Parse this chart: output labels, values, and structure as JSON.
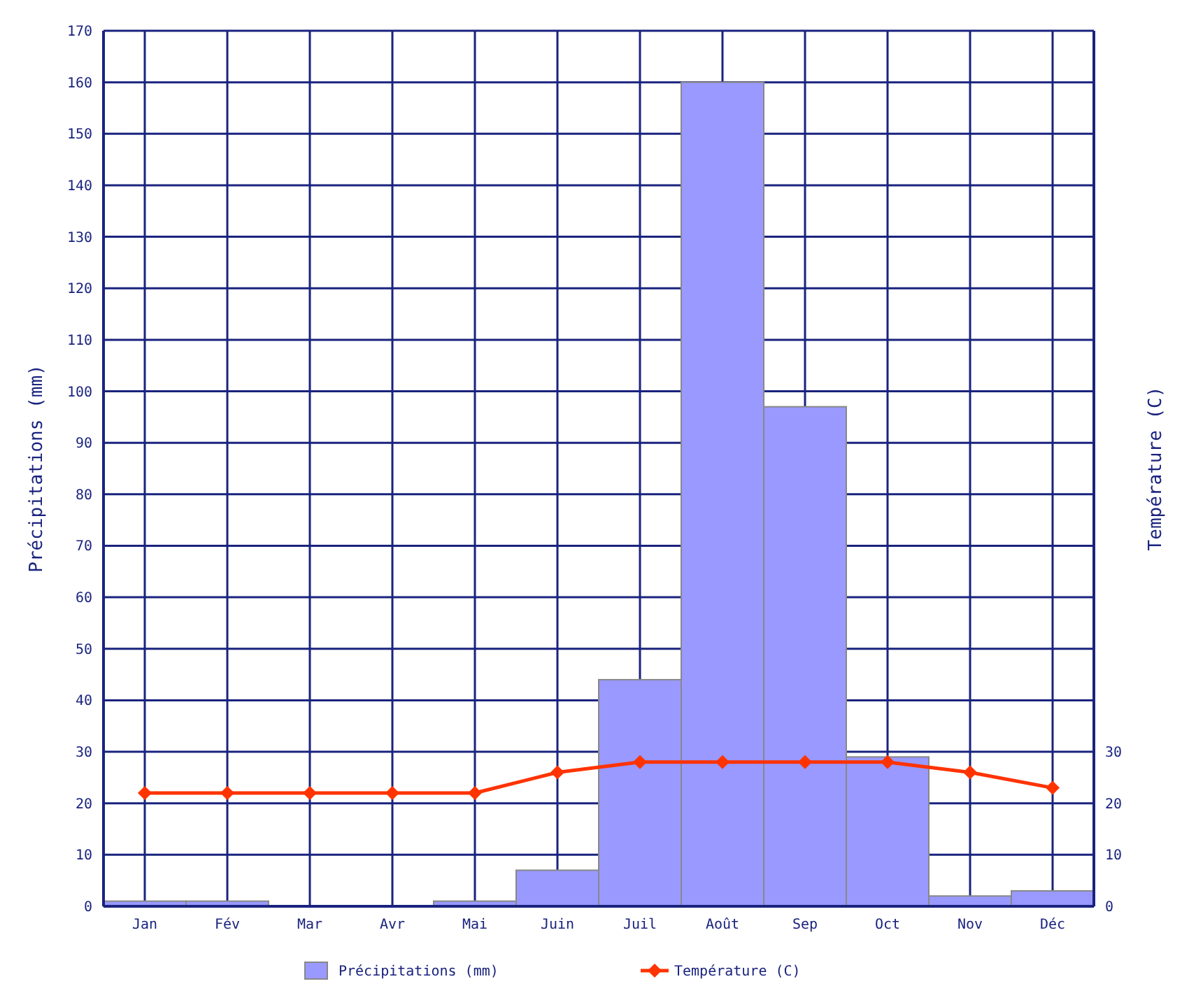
{
  "chart_data": {
    "type": "bar",
    "ylabel": "Précipitations (mm)",
    "y2label": "Température (C)",
    "categories": [
      "Jan",
      "Fév",
      "Mar",
      "Avr",
      "Mai",
      "Juin",
      "Juil",
      "Août",
      "Sep",
      "Oct",
      "Nov",
      "Déc"
    ],
    "series": [
      {
        "name": "Précipitations (mm)",
        "color": "#9999ff",
        "values": [
          1,
          1,
          0,
          0,
          1,
          7,
          44,
          160,
          97,
          29,
          2,
          3
        ]
      },
      {
        "name": "Température (C)",
        "type": "line",
        "axis": "y2",
        "color": "#ff3300",
        "marker": "diamond",
        "values": [
          22,
          22,
          22,
          22,
          22,
          26,
          28,
          28,
          28,
          28,
          26,
          23
        ]
      }
    ],
    "ylim": [
      0,
      170
    ],
    "yticks": [
      0,
      10,
      20,
      30,
      40,
      50,
      60,
      70,
      80,
      90,
      100,
      110,
      120,
      130,
      140,
      150,
      160,
      170
    ],
    "y2lim": [
      0,
      170
    ],
    "y2ticks": [
      0,
      10,
      20,
      30
    ],
    "grid": true,
    "legend": "bottom"
  }
}
